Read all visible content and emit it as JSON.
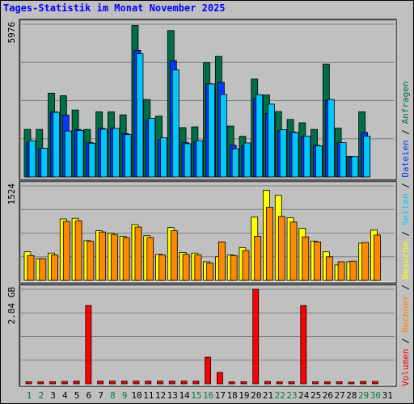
{
  "title": "Tages-Statistik im Monat November 2025",
  "colors": {
    "background": "#c0c0c0",
    "hits": "#006f45",
    "files": "#0038ff",
    "pages": "#00c8ff",
    "visits": "#ffff00",
    "sites": "#ff8800",
    "kbytes": "#ff0000",
    "weekend_label": "#007f3f",
    "weekday_label": "#000000",
    "grid": "#808080"
  },
  "chart_data": {
    "type": "bar",
    "categories": [
      "1",
      "2",
      "3",
      "4",
      "5",
      "6",
      "7",
      "8",
      "9",
      "10",
      "11",
      "12",
      "13",
      "14",
      "15",
      "16",
      "17",
      "18",
      "19",
      "20",
      "21",
      "22",
      "23",
      "24",
      "25",
      "26",
      "27",
      "28",
      "29",
      "30",
      "31"
    ],
    "weekend_days": [
      "1",
      "2",
      "8",
      "9",
      "15",
      "16",
      "22",
      "23",
      "29",
      "30"
    ],
    "panels": [
      {
        "name": "requests",
        "ymax_label": "5976",
        "ymax": 5976,
        "series": [
          {
            "name": "Anfragen",
            "color": "#006f45",
            "values": [
              1860,
              1860,
              3280,
              3180,
              2620,
              1860,
              2550,
              2550,
              2430,
              5930,
              3030,
              2380,
              5730,
              1930,
              1960,
              4470,
              4720,
              1990,
              1590,
              3830,
              3210,
              2560,
              2250,
              2120,
              1860,
              4420,
              1910,
              810,
              2550,
              0,
              0
            ]
          },
          {
            "name": "Dateien",
            "color": "#0038ff",
            "values": [
              1350,
              1120,
              2550,
              2420,
              1860,
              1350,
              1900,
              1900,
              1700,
              4950,
              2220,
              1450,
              4550,
              1350,
              1380,
              3650,
              3700,
              1240,
              1220,
              3060,
              2480,
              1800,
              1760,
              1600,
              1240,
              3000,
              1340,
              760,
              1740,
              0,
              0
            ]
          },
          {
            "name": "Seiten",
            "color": "#00c8ff",
            "values": [
              1420,
              1120,
              2530,
              1800,
              1820,
              1320,
              1870,
              1900,
              1660,
              4820,
              2290,
              1530,
              4190,
              1300,
              1420,
              3640,
              3230,
              1100,
              1330,
              3220,
              2850,
              1850,
              1740,
              1600,
              1220,
              3030,
              1340,
              800,
              1600,
              0,
              0
            ]
          }
        ]
      },
      {
        "name": "visits",
        "ymax_label": "1524",
        "ymax": 1524,
        "series": [
          {
            "name": "Besuche",
            "color": "#ffff00",
            "values": [
              460,
              350,
              440,
              990,
              1000,
              640,
              800,
              760,
              710,
              900,
              720,
              420,
              850,
              450,
              440,
              300,
              380,
              410,
              530,
              1020,
              1450,
              1370,
              1010,
              840,
              630,
              460,
              250,
              300,
              600,
              810,
              0
            ]
          },
          {
            "name": "Rechner",
            "color": "#ff8800",
            "values": [
              400,
              350,
              410,
              950,
              960,
              630,
              780,
              740,
              690,
              860,
              690,
              410,
              800,
              420,
              410,
              280,
              620,
              400,
              480,
              710,
              1180,
              1030,
              940,
              700,
              620,
              380,
              300,
              310,
              610,
              730,
              0
            ]
          }
        ]
      },
      {
        "name": "volume",
        "ymax_label": "2.84 GB",
        "ymax": 2.84,
        "series": [
          {
            "name": "Volumen",
            "color": "#ff0000",
            "values": [
              0.06,
              0.06,
              0.06,
              0.07,
              0.08,
              2.35,
              0.08,
              0.08,
              0.08,
              0.08,
              0.08,
              0.08,
              0.08,
              0.08,
              0.08,
              0.8,
              0.34,
              0.06,
              0.06,
              2.84,
              0.07,
              0.06,
              0.06,
              2.35,
              0.06,
              0.06,
              0.06,
              0.04,
              0.07,
              0.07,
              0
            ]
          }
        ]
      }
    ]
  },
  "right_legend": {
    "items": [
      "Volumen",
      "Rechner",
      "Besuche",
      "Seiten",
      "Dateien",
      "Anfragen"
    ],
    "separator": " / "
  }
}
